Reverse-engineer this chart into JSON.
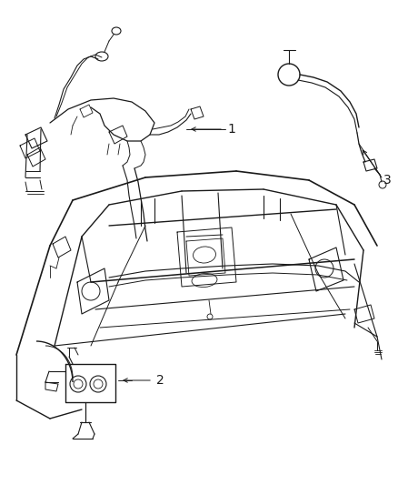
{
  "background_color": "#ffffff",
  "line_color": "#1a1a1a",
  "fig_width": 4.38,
  "fig_height": 5.33,
  "dpi": 100,
  "label1": "1",
  "label2": "2",
  "label3": "3"
}
